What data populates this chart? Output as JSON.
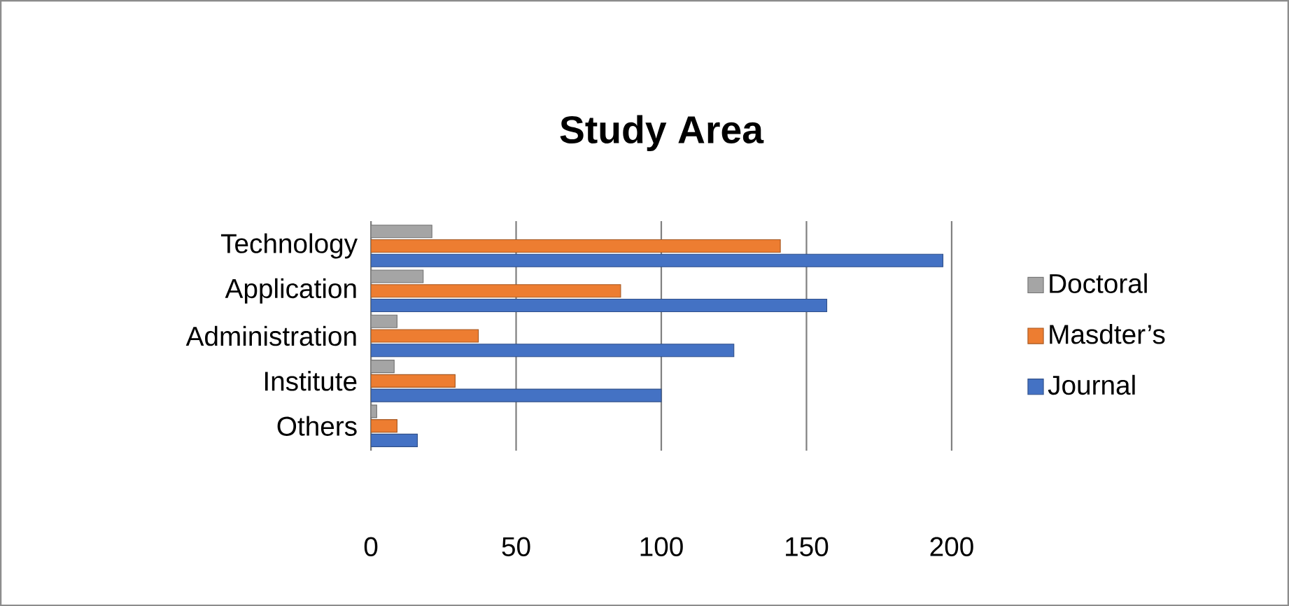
{
  "chart_data": {
    "type": "bar",
    "orientation": "horizontal",
    "title": "Study Area",
    "categories": [
      "Technology",
      "Application",
      "Administration",
      "Institute",
      "Others"
    ],
    "series": [
      {
        "name": "Doctoral",
        "color": "#a5a5a5",
        "values": [
          21,
          18,
          9,
          8,
          2
        ]
      },
      {
        "name": "Masdter’s",
        "color": "#ed7d31",
        "values": [
          141,
          86,
          37,
          29,
          9
        ]
      },
      {
        "name": "Journal",
        "color": "#4472c4",
        "values": [
          197,
          157,
          125,
          100,
          16
        ]
      }
    ],
    "xlim": [
      0,
      200
    ],
    "xticks": [
      0,
      50,
      100,
      150,
      200
    ],
    "grid": "x",
    "legend": "right"
  }
}
